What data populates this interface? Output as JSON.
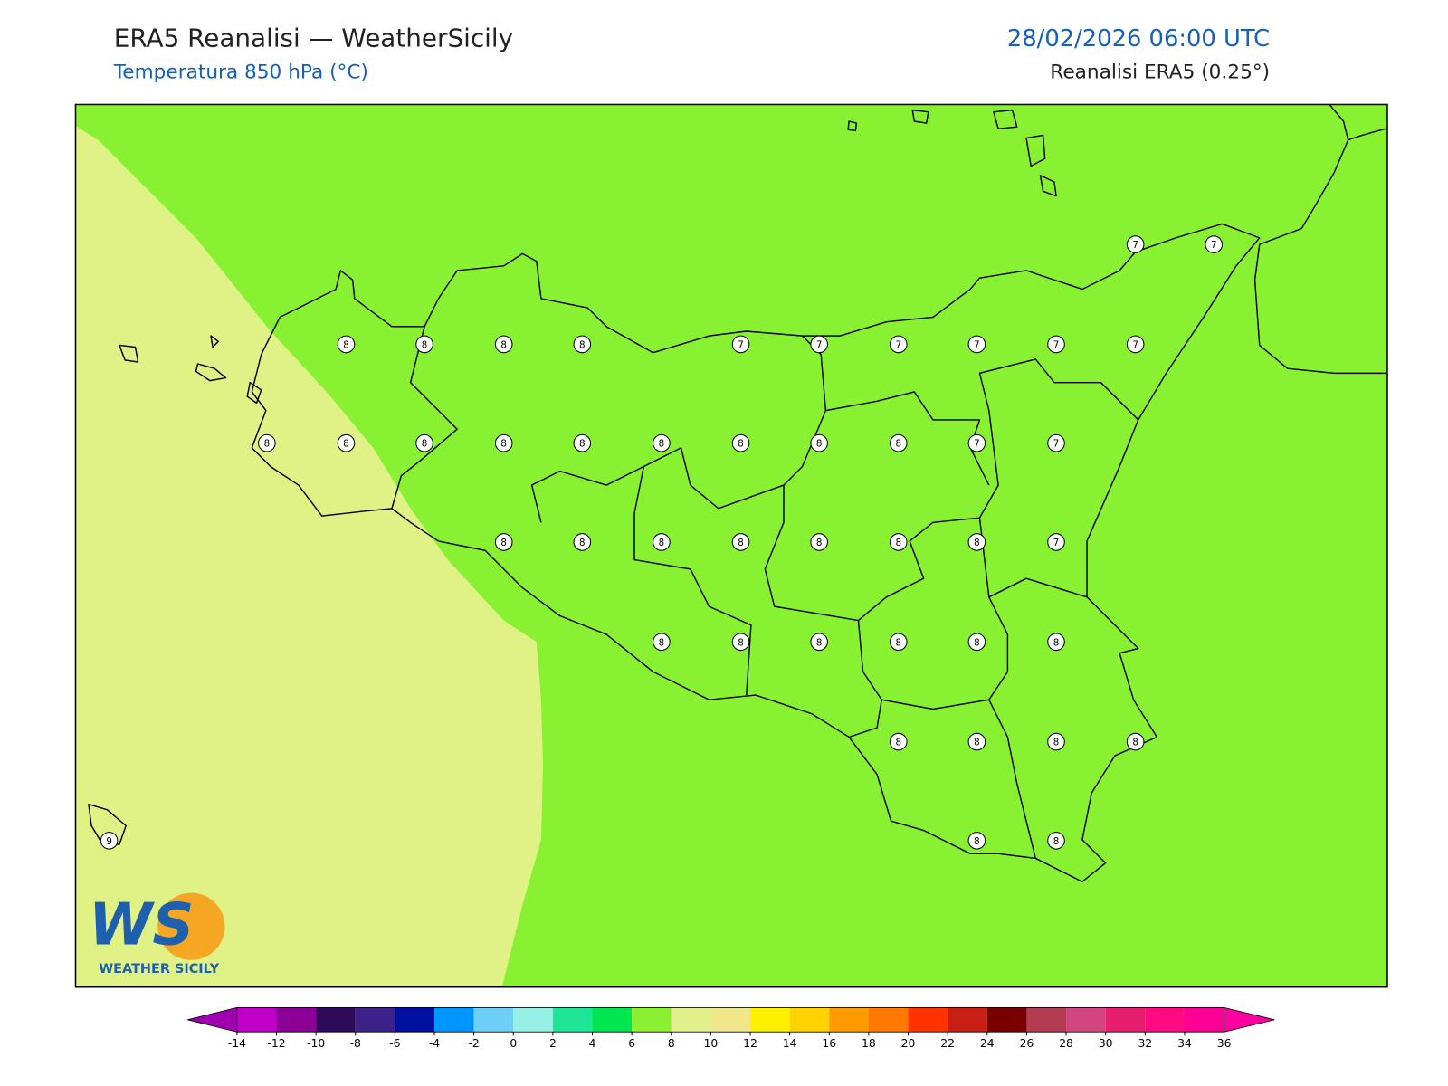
{
  "header": {
    "title": "ERA5 Reanalisi — WeatherSicily",
    "subtitle": "Temperatura 850 hPa (°C)",
    "datetime": "28/02/2026 06:00 UTC",
    "source": "Reanalisi ERA5 (0.25°)"
  },
  "stations": {
    "values": [
      7,
      7,
      8,
      8,
      8,
      8,
      7,
      7,
      7,
      7,
      7,
      7,
      8,
      8,
      8,
      8,
      8,
      8,
      8,
      8,
      8,
      7,
      7,
      8,
      8,
      8,
      8,
      8,
      8,
      8,
      7,
      8,
      8,
      8,
      8,
      8,
      8,
      8,
      8,
      8,
      8,
      9,
      8,
      8
    ]
  },
  "colorbar": {
    "ticks": [
      -14,
      -12,
      -10,
      -8,
      -6,
      -4,
      -2,
      0,
      2,
      4,
      6,
      8,
      10,
      12,
      14,
      16,
      18,
      20,
      22,
      24,
      26,
      28,
      30,
      32,
      34,
      36
    ],
    "colors": [
      "#c000c8",
      "#8c0096",
      "#2e0a5a",
      "#3c2288",
      "#0010a0",
      "#0096ff",
      "#6ecff6",
      "#96f0e6",
      "#1ee696",
      "#00e650",
      "#8cf032",
      "#e1f08c",
      "#f0e68c",
      "#fff000",
      "#ffd200",
      "#ff9b00",
      "#ff7800",
      "#ff3200",
      "#c81e14",
      "#780000",
      "#b43c50",
      "#d2467d",
      "#e61e6e",
      "#ff0a82",
      "#ff0096"
    ],
    "under": "#a000b0",
    "over": "#ff00a0"
  },
  "logo": {
    "mark": "WS",
    "text": "WEATHER SICILY"
  }
}
